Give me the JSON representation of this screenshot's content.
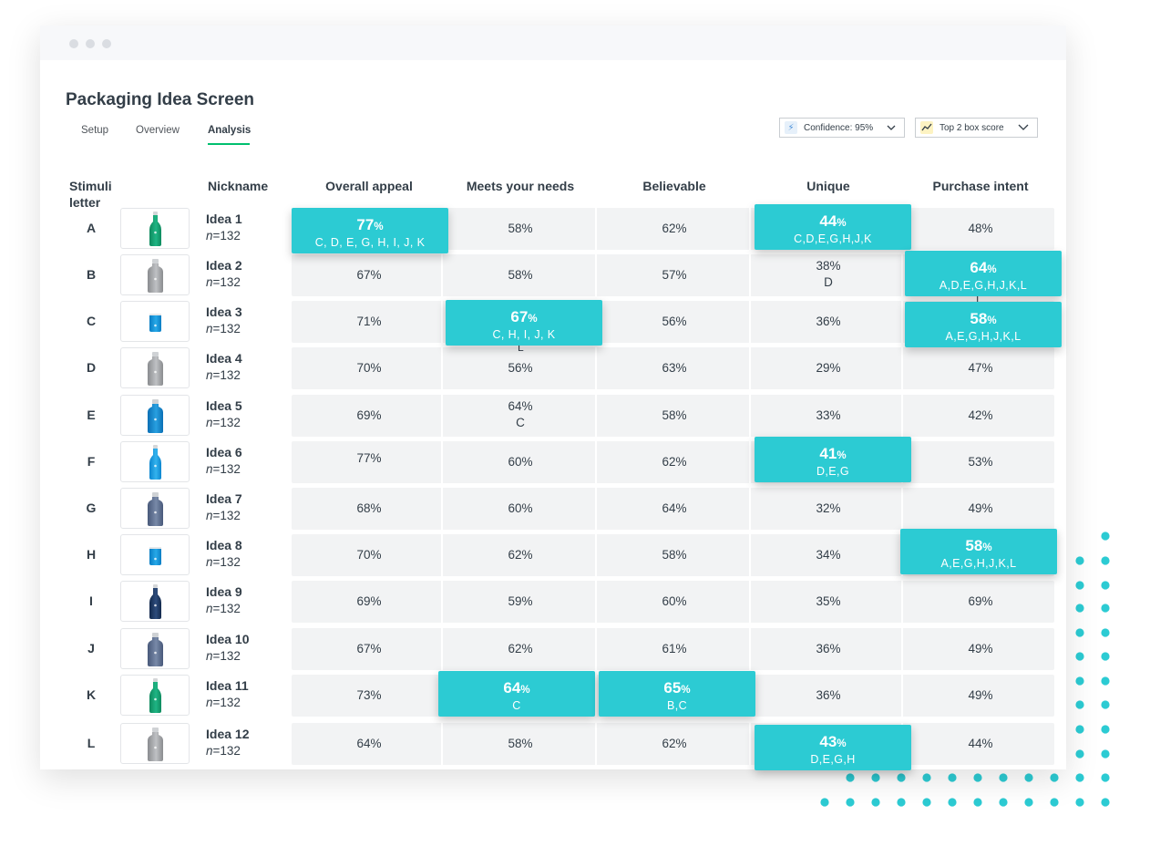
{
  "page": {
    "title": "Packaging Idea Screen",
    "tabs": [
      {
        "label": "Setup",
        "active": false
      },
      {
        "label": "Overview",
        "active": false
      },
      {
        "label": "Analysis",
        "active": true
      }
    ],
    "confidence_dropdown": {
      "label": "Confidence: 95%",
      "icon": "lightning-icon"
    },
    "metric_dropdown": {
      "label": "Top 2 box score",
      "icon": "trend-line-icon"
    }
  },
  "colors": {
    "highlight": "#2ccbd3",
    "active_tab": "#00bf6f",
    "dots": "#2ccbd3",
    "row_bg": "#f2f3f4"
  },
  "table": {
    "headers": {
      "stimuli_letter_line1": "Stimuli",
      "stimuli_letter_line2": "letter",
      "nickname": "Nickname",
      "columns": [
        "Overall appeal",
        "Meets your needs",
        "Believable",
        "Unique",
        "Purchase intent"
      ]
    },
    "rows": [
      {
        "letter": "A",
        "nickname": "Idea 1",
        "n_prefix": "n",
        "n_value": "=132",
        "bottle": "green-bottle",
        "cells": [
          {
            "v": "77",
            "s": "C, D, E, G, H, I, J, K",
            "hl": true
          },
          {
            "v": "58%"
          },
          {
            "v": "62%"
          },
          {
            "v": "44",
            "s": "C,D,E,G,H,J,K",
            "hl": true
          },
          {
            "v": "48%"
          }
        ]
      },
      {
        "letter": "B",
        "nickname": "Idea 2",
        "n_prefix": "n",
        "n_value": "=132",
        "bottle": "gray-bottle",
        "cells": [
          {
            "v": "67%"
          },
          {
            "v": "58%"
          },
          {
            "v": "57%"
          },
          {
            "v": "38%",
            "s": "D"
          },
          {
            "v": "64",
            "s": "A,D,E,G,H,J,K,L",
            "hl": true
          }
        ]
      },
      {
        "letter": "C",
        "nickname": "Idea 3",
        "n_prefix": "n",
        "n_value": "=132",
        "bottle": "blue-can",
        "cells": [
          {
            "v": "71%"
          },
          {
            "v": "67",
            "s": "C, H, I, J, K",
            "hl": true
          },
          {
            "v": "56%"
          },
          {
            "v": "36%"
          },
          {
            "v": "58",
            "s": "A,E,G,H,J,K,L",
            "hl": true
          }
        ]
      },
      {
        "letter": "D",
        "nickname": "Idea 4",
        "n_prefix": "n",
        "n_value": "=132",
        "bottle": "gray-bottle",
        "cells": [
          {
            "v": "70%"
          },
          {
            "v": "56%"
          },
          {
            "v": "63%"
          },
          {
            "v": "29%"
          },
          {
            "v": "47%"
          }
        ]
      },
      {
        "letter": "E",
        "nickname": "Idea 5",
        "n_prefix": "n",
        "n_value": "=132",
        "bottle": "blue-bottle",
        "cells": [
          {
            "v": "69%"
          },
          {
            "v": "64%",
            "s": "C"
          },
          {
            "v": "58%"
          },
          {
            "v": "33%"
          },
          {
            "v": "42%"
          }
        ]
      },
      {
        "letter": "F",
        "nickname": "Idea 6",
        "n_prefix": "n",
        "n_value": "=132",
        "bottle": "blue-slim-bottle",
        "cells": [
          {
            "v": "77%"
          },
          {
            "v": "60%"
          },
          {
            "v": "62%"
          },
          {
            "v": "41",
            "s": "D,E,G",
            "hl": true
          },
          {
            "v": "53%"
          }
        ]
      },
      {
        "letter": "G",
        "nickname": "Idea 7",
        "n_prefix": "n",
        "n_value": "=132",
        "bottle": "slate-bottle",
        "cells": [
          {
            "v": "68%"
          },
          {
            "v": "60%"
          },
          {
            "v": "64%"
          },
          {
            "v": "32%"
          },
          {
            "v": "49%"
          }
        ]
      },
      {
        "letter": "H",
        "nickname": "Idea 8",
        "n_prefix": "n",
        "n_value": "=132",
        "bottle": "blue-can",
        "cells": [
          {
            "v": "70%"
          },
          {
            "v": "62%"
          },
          {
            "v": "58%"
          },
          {
            "v": "34%"
          },
          {
            "v": "58",
            "s": "A,E,G,H,J,K,L",
            "hl": true
          }
        ]
      },
      {
        "letter": "I",
        "nickname": "Idea 9",
        "n_prefix": "n",
        "n_value": "=132",
        "bottle": "navy-bottle",
        "cells": [
          {
            "v": "69%"
          },
          {
            "v": "59%"
          },
          {
            "v": "60%"
          },
          {
            "v": "35%"
          },
          {
            "v": "69%"
          }
        ]
      },
      {
        "letter": "J",
        "nickname": "Idea 10",
        "n_prefix": "n",
        "n_value": "=132",
        "bottle": "slate-bottle",
        "cells": [
          {
            "v": "67%"
          },
          {
            "v": "62%"
          },
          {
            "v": "61%"
          },
          {
            "v": "36%"
          },
          {
            "v": "49%"
          }
        ]
      },
      {
        "letter": "K",
        "nickname": "Idea 11",
        "n_prefix": "n",
        "n_value": "=132",
        "bottle": "green-bottle",
        "cells": [
          {
            "v": "73%"
          },
          {
            "v": "64",
            "s": "C",
            "hl": true
          },
          {
            "v": "65",
            "s": "B,C",
            "hl": true
          },
          {
            "v": "36%"
          },
          {
            "v": "49%"
          }
        ]
      },
      {
        "letter": "L",
        "nickname": "Idea 12",
        "n_prefix": "n",
        "n_value": "=132",
        "bottle": "gray-bottle",
        "cells": [
          {
            "v": "64%"
          },
          {
            "v": "58%"
          },
          {
            "v": "62%"
          },
          {
            "v": "43",
            "s": "D,E,G,H",
            "hl": true
          },
          {
            "v": "44%"
          }
        ]
      }
    ],
    "percent_suffix": "%",
    "stray_letters": [
      {
        "text": "L"
      },
      {
        "text": "I"
      }
    ]
  }
}
